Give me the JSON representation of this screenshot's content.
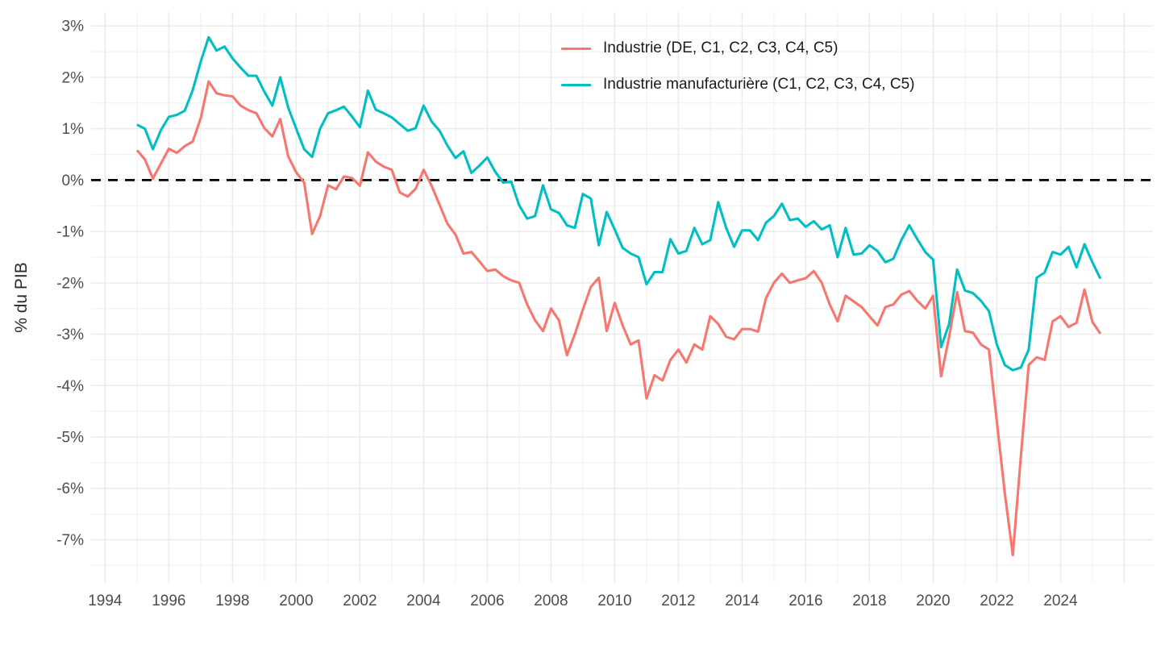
{
  "page": {
    "background": "#ffffff"
  },
  "chart_data": {
    "type": "line",
    "title": "",
    "xlabel": "",
    "ylabel": "% du PIB",
    "x_unit": "quarterly",
    "x_start": 1995.0,
    "x_step": 0.25,
    "x_domain": [
      1993.56,
      2026.9
    ],
    "y_domain": [
      -7.84,
      3.27
    ],
    "x_tick_values": [
      1994,
      1996,
      1998,
      2000,
      2002,
      2004,
      2006,
      2008,
      2010,
      2012,
      2014,
      2016,
      2018,
      2020,
      2022,
      2024
    ],
    "x_tick_labels": [
      "1994",
      "1996",
      "1998",
      "2000",
      "2002",
      "2004",
      "2006",
      "2008",
      "2010",
      "2012",
      "2014",
      "2016",
      "2018",
      "2020",
      "2022",
      "2024"
    ],
    "y_tick_values": [
      3,
      2,
      1,
      0,
      -1,
      -2,
      -3,
      -4,
      -5,
      -6,
      -7
    ],
    "y_tick_labels": [
      "3%",
      "2%",
      "1%",
      "0%",
      "-1%",
      "-2%",
      "-3%",
      "-4%",
      "-5%",
      "-6%",
      "-7%"
    ],
    "grid": {
      "major_color": "#EBEBEB",
      "minor_color": "#F0F0F0",
      "major_width": 1.5,
      "minor_width": 1.1,
      "background": "#FFFFFF"
    },
    "zero_line": {
      "value": 0,
      "color": "#000000",
      "width": 2.8,
      "dash": [
        12,
        9
      ]
    },
    "legend_position": "top-center-inside",
    "axis_text_color": "#4D4D4D",
    "series": [
      {
        "name": "Industrie (DE, C1, C2, C3, C4, C5)",
        "color": "#F8766D",
        "values": [
          0.58,
          0.4,
          0.03,
          0.32,
          0.61,
          0.53,
          0.66,
          0.75,
          1.2,
          1.92,
          1.69,
          1.65,
          1.63,
          1.45,
          1.36,
          1.3,
          1.01,
          0.85,
          1.19,
          0.46,
          0.15,
          -0.05,
          -1.05,
          -0.7,
          -0.1,
          -0.18,
          0.07,
          0.04,
          -0.11,
          0.54,
          0.36,
          0.26,
          0.2,
          -0.24,
          -0.32,
          -0.17,
          0.2,
          -0.11,
          -0.48,
          -0.85,
          -1.06,
          -1.43,
          -1.4,
          -1.58,
          -1.77,
          -1.74,
          -1.87,
          -1.95,
          -2.0,
          -2.42,
          -2.73,
          -2.94,
          -2.5,
          -2.73,
          -3.41,
          -3.0,
          -2.52,
          -2.08,
          -1.9,
          -2.94,
          -2.39,
          -2.83,
          -3.2,
          -3.12,
          -4.25,
          -3.8,
          -3.9,
          -3.5,
          -3.3,
          -3.55,
          -3.2,
          -3.3,
          -2.65,
          -2.8,
          -3.05,
          -3.1,
          -2.9,
          -2.9,
          -2.95,
          -2.3,
          -2.0,
          -1.82,
          -2.0,
          -1.95,
          -1.91,
          -1.77,
          -2.0,
          -2.42,
          -2.75,
          -2.25,
          -2.36,
          -2.47,
          -2.65,
          -2.83,
          -2.47,
          -2.42,
          -2.23,
          -2.16,
          -2.35,
          -2.5,
          -2.25,
          -3.82,
          -3.05,
          -2.18,
          -2.94,
          -2.97,
          -3.2,
          -3.3,
          -4.7,
          -6.1,
          -7.3,
          -5.4,
          -3.6,
          -3.45,
          -3.5,
          -2.75,
          -2.65,
          -2.86,
          -2.78,
          -2.13,
          -2.76,
          -2.99
        ]
      },
      {
        "name": "Industrie manufacturière (C1, C2, C3, C4, C5)",
        "color": "#00BFC4",
        "values": [
          1.08,
          1.0,
          0.6,
          0.97,
          1.23,
          1.27,
          1.35,
          1.75,
          2.3,
          2.78,
          2.52,
          2.6,
          2.37,
          2.19,
          2.03,
          2.03,
          1.72,
          1.45,
          2.0,
          1.41,
          1.0,
          0.6,
          0.45,
          1.0,
          1.3,
          1.36,
          1.43,
          1.24,
          1.03,
          1.74,
          1.37,
          1.3,
          1.22,
          1.09,
          0.96,
          1.01,
          1.45,
          1.14,
          0.96,
          0.67,
          0.43,
          0.56,
          0.14,
          0.28,
          0.44,
          0.16,
          -0.05,
          -0.03,
          -0.49,
          -0.75,
          -0.7,
          -0.1,
          -0.57,
          -0.64,
          -0.88,
          -0.93,
          -0.27,
          -0.36,
          -1.27,
          -0.62,
          -0.96,
          -1.32,
          -1.43,
          -1.5,
          -2.03,
          -1.79,
          -1.79,
          -1.15,
          -1.43,
          -1.38,
          -0.93,
          -1.25,
          -1.17,
          -0.43,
          -0.93,
          -1.3,
          -0.98,
          -0.98,
          -1.17,
          -0.83,
          -0.7,
          -0.46,
          -0.78,
          -0.75,
          -0.91,
          -0.8,
          -0.96,
          -0.88,
          -1.5,
          -0.93,
          -1.45,
          -1.43,
          -1.27,
          -1.38,
          -1.6,
          -1.53,
          -1.17,
          -0.88,
          -1.15,
          -1.4,
          -1.55,
          -3.25,
          -2.8,
          -1.74,
          -2.15,
          -2.2,
          -2.35,
          -2.55,
          -3.2,
          -3.6,
          -3.7,
          -3.65,
          -3.3,
          -1.9,
          -1.8,
          -1.4,
          -1.45,
          -1.3,
          -1.7,
          -1.25,
          -1.6,
          -1.92
        ]
      }
    ]
  }
}
